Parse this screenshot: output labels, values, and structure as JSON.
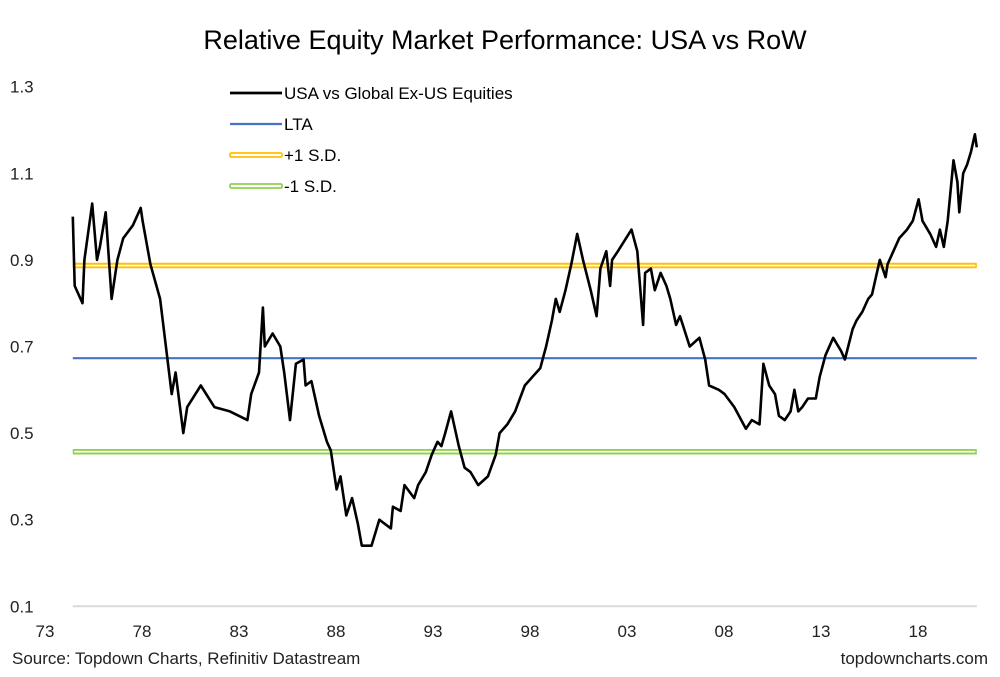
{
  "chart_data": {
    "type": "line",
    "title": "Relative Equity Market Performance: USA vs RoW",
    "xlabel": "",
    "ylabel": "",
    "ylim": [
      0.1,
      1.3
    ],
    "y_ticks": [
      "0.1",
      "0.3",
      "0.5",
      "0.7",
      "0.9",
      "1.1",
      "1.3"
    ],
    "x_tick_years": [
      1973,
      1978,
      1983,
      1988,
      1993,
      1998,
      2003,
      2008,
      2013,
      2018
    ],
    "x_tick_labels": [
      "73",
      "78",
      "83",
      "88",
      "93",
      "98",
      "03",
      "08",
      "13",
      "18"
    ],
    "grid": false,
    "legend_position": "top-left",
    "series": [
      {
        "name": "USA vs Global Ex-US Equities",
        "color": "#000000",
        "points": [
          [
            1973.4,
            1.0
          ],
          [
            1973.5,
            0.84
          ],
          [
            1973.9,
            0.8
          ],
          [
            1974.0,
            0.9
          ],
          [
            1974.4,
            1.03
          ],
          [
            1974.65,
            0.9
          ],
          [
            1974.8,
            0.93
          ],
          [
            1975.1,
            1.01
          ],
          [
            1975.4,
            0.81
          ],
          [
            1975.7,
            0.9
          ],
          [
            1976.0,
            0.95
          ],
          [
            1976.5,
            0.98
          ],
          [
            1976.9,
            1.02
          ],
          [
            1977.0,
            0.99
          ],
          [
            1977.4,
            0.89
          ],
          [
            1977.9,
            0.81
          ],
          [
            1978.2,
            0.7
          ],
          [
            1978.5,
            0.59
          ],
          [
            1978.7,
            0.64
          ],
          [
            1979.1,
            0.5
          ],
          [
            1979.3,
            0.56
          ],
          [
            1980.0,
            0.61
          ],
          [
            1980.7,
            0.56
          ],
          [
            1981.5,
            0.55
          ],
          [
            1982.4,
            0.53
          ],
          [
            1982.6,
            0.59
          ],
          [
            1983.0,
            0.64
          ],
          [
            1983.2,
            0.79
          ],
          [
            1983.3,
            0.7
          ],
          [
            1983.7,
            0.73
          ],
          [
            1984.1,
            0.7
          ],
          [
            1984.3,
            0.64
          ],
          [
            1984.6,
            0.53
          ],
          [
            1984.9,
            0.66
          ],
          [
            1985.3,
            0.67
          ],
          [
            1985.4,
            0.61
          ],
          [
            1985.7,
            0.62
          ],
          [
            1986.1,
            0.54
          ],
          [
            1986.5,
            0.48
          ],
          [
            1986.7,
            0.46
          ],
          [
            1987.0,
            0.37
          ],
          [
            1987.2,
            0.4
          ],
          [
            1987.5,
            0.31
          ],
          [
            1987.8,
            0.35
          ],
          [
            1988.1,
            0.29
          ],
          [
            1988.3,
            0.24
          ],
          [
            1988.8,
            0.24
          ],
          [
            1989.2,
            0.3
          ],
          [
            1989.8,
            0.28
          ],
          [
            1989.9,
            0.33
          ],
          [
            1990.3,
            0.32
          ],
          [
            1990.5,
            0.38
          ],
          [
            1991.0,
            0.35
          ],
          [
            1991.2,
            0.38
          ],
          [
            1991.6,
            0.41
          ],
          [
            1991.9,
            0.45
          ],
          [
            1992.2,
            0.48
          ],
          [
            1992.4,
            0.47
          ],
          [
            1992.6,
            0.5
          ],
          [
            1992.9,
            0.55
          ],
          [
            1993.3,
            0.47
          ],
          [
            1993.6,
            0.42
          ],
          [
            1993.9,
            0.41
          ],
          [
            1994.3,
            0.38
          ],
          [
            1994.8,
            0.4
          ],
          [
            1995.2,
            0.45
          ],
          [
            1995.4,
            0.5
          ],
          [
            1995.8,
            0.52
          ],
          [
            1996.2,
            0.55
          ],
          [
            1996.7,
            0.61
          ],
          [
            1997.1,
            0.63
          ],
          [
            1997.5,
            0.65
          ],
          [
            1997.8,
            0.7
          ],
          [
            1998.1,
            0.76
          ],
          [
            1998.3,
            0.81
          ],
          [
            1998.5,
            0.78
          ],
          [
            1998.8,
            0.83
          ],
          [
            1999.1,
            0.89
          ],
          [
            1999.4,
            0.96
          ],
          [
            1999.7,
            0.9
          ],
          [
            2000.1,
            0.83
          ],
          [
            2000.4,
            0.77
          ],
          [
            2000.6,
            0.88
          ],
          [
            2000.9,
            0.92
          ],
          [
            2001.1,
            0.84
          ],
          [
            2001.2,
            0.9
          ],
          [
            2001.5,
            0.92
          ],
          [
            2002.2,
            0.97
          ],
          [
            2002.5,
            0.92
          ],
          [
            2002.8,
            0.75
          ],
          [
            2002.9,
            0.87
          ],
          [
            2003.2,
            0.88
          ],
          [
            2003.4,
            0.83
          ],
          [
            2003.7,
            0.87
          ],
          [
            2004.0,
            0.84
          ],
          [
            2004.2,
            0.81
          ],
          [
            2004.5,
            0.75
          ],
          [
            2004.7,
            0.77
          ],
          [
            2005.2,
            0.7
          ],
          [
            2005.7,
            0.72
          ],
          [
            2006.0,
            0.67
          ],
          [
            2006.2,
            0.61
          ],
          [
            2006.7,
            0.6
          ],
          [
            2007.0,
            0.59
          ],
          [
            2007.5,
            0.56
          ],
          [
            2008.1,
            0.51
          ],
          [
            2008.4,
            0.53
          ],
          [
            2008.8,
            0.52
          ],
          [
            2009.0,
            0.66
          ],
          [
            2009.3,
            0.61
          ],
          [
            2009.6,
            0.59
          ],
          [
            2009.8,
            0.54
          ],
          [
            2010.1,
            0.53
          ],
          [
            2010.4,
            0.55
          ],
          [
            2010.6,
            0.6
          ],
          [
            2010.8,
            0.55
          ],
          [
            2011.0,
            0.56
          ],
          [
            2011.3,
            0.58
          ],
          [
            2011.7,
            0.58
          ],
          [
            2011.9,
            0.63
          ],
          [
            2012.2,
            0.68
          ],
          [
            2012.6,
            0.72
          ],
          [
            2013.0,
            0.69
          ],
          [
            2013.2,
            0.67
          ],
          [
            2013.6,
            0.74
          ],
          [
            2013.8,
            0.76
          ],
          [
            2014.1,
            0.78
          ],
          [
            2014.4,
            0.81
          ],
          [
            2014.6,
            0.82
          ],
          [
            2014.8,
            0.86
          ],
          [
            2015.0,
            0.9
          ],
          [
            2015.3,
            0.86
          ],
          [
            2015.4,
            0.89
          ],
          [
            2015.7,
            0.92
          ],
          [
            2016.0,
            0.95
          ],
          [
            2016.4,
            0.97
          ],
          [
            2016.7,
            0.99
          ],
          [
            2017.0,
            1.04
          ],
          [
            2017.2,
            0.99
          ],
          [
            2017.6,
            0.96
          ],
          [
            2017.9,
            0.93
          ],
          [
            2018.1,
            0.97
          ],
          [
            2018.3,
            0.93
          ],
          [
            2018.5,
            0.99
          ],
          [
            2018.8,
            1.13
          ],
          [
            2019.0,
            1.08
          ],
          [
            2019.1,
            1.01
          ],
          [
            2019.3,
            1.1
          ],
          [
            2019.5,
            1.12
          ],
          [
            2019.7,
            1.15
          ],
          [
            2019.9,
            1.19
          ],
          [
            2020.0,
            1.16
          ]
        ]
      },
      {
        "name": "LTA",
        "color": "#4472c4",
        "value": 0.673
      },
      {
        "name": "+1 S.D.",
        "color": "#ffc000",
        "value": 0.887
      },
      {
        "name": "-1 S.D.",
        "color": "#92d050",
        "value": 0.457
      }
    ],
    "x_range": [
      1973.4,
      2020.0
    ]
  },
  "footer": {
    "source": "Source: Topdown Charts, Refinitiv Datastream",
    "brand": "topdowncharts.com"
  }
}
